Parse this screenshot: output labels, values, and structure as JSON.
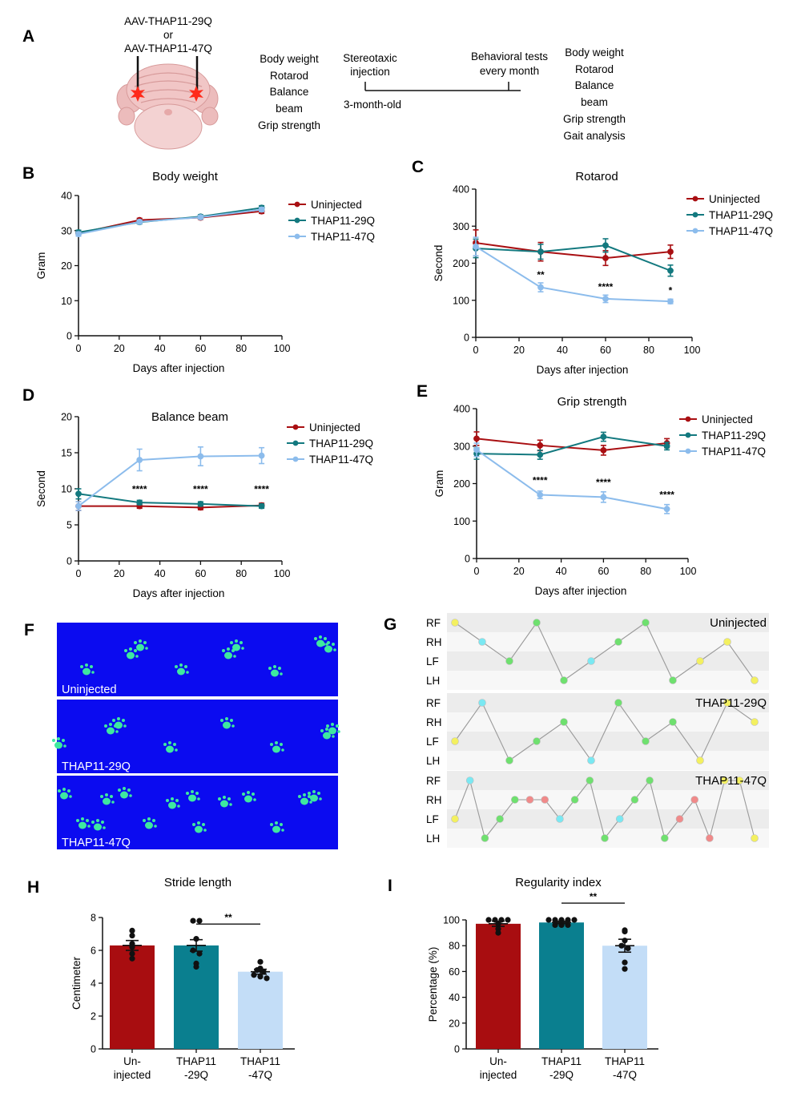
{
  "colors": {
    "uninjected": "#a90f12",
    "thap29": "#13797f",
    "thap47": "#8cbcec",
    "bar_uninjected": "#a80d10",
    "bar_thap29": "#0a7f8f",
    "bar_thap47": "#c3ddf7",
    "gait_bg": "#0b0bf0",
    "paw": "#3ee8a0",
    "dot_yellow": "#f3f060",
    "dot_green": "#6fe06f",
    "dot_cyan": "#7ae8f2",
    "dot_pink": "#f08a8a"
  },
  "panel_letters": {
    "A": "A",
    "B": "B",
    "C": "C",
    "D": "D",
    "E": "E",
    "F": "F",
    "G": "G",
    "H": "H",
    "I": "I"
  },
  "panelA": {
    "virus_line1": "AAV-THAP11-29Q",
    "virus_or": "or",
    "virus_line2": "AAV-THAP11-47Q",
    "baseline_tests": [
      "Body weight",
      "Rotarod",
      "Balance",
      "beam",
      "Grip strength"
    ],
    "injection_label": [
      "Stereotaxic",
      "injection"
    ],
    "age_label": "3-month-old",
    "behavior_label": [
      "Behavioral tests",
      "every month"
    ],
    "monthly_tests": [
      "Body weight",
      "Rotarod",
      "Balance",
      "beam",
      "Grip strength",
      "Gait analysis"
    ]
  },
  "chart_data": [
    {
      "id": "B",
      "type": "line",
      "title": "Body weight",
      "xlabel": "Days after injection",
      "ylabel": "Gram",
      "xlim": [
        0,
        100
      ],
      "ylim": [
        0,
        40
      ],
      "xticks": [
        0,
        20,
        40,
        60,
        80,
        100
      ],
      "yticks": [
        0,
        10,
        20,
        30,
        40
      ],
      "x": [
        0,
        30,
        60,
        90
      ],
      "series": [
        {
          "name": "Uninjected",
          "values": [
            29.2,
            33.0,
            33.7,
            35.5
          ],
          "err": [
            0.6,
            0.5,
            0.5,
            0.6
          ]
        },
        {
          "name": "THAP11-29Q",
          "values": [
            29.5,
            32.4,
            34.0,
            36.5
          ],
          "err": [
            0.6,
            0.5,
            0.5,
            0.6
          ]
        },
        {
          "name": "THAP11-47Q",
          "values": [
            29.0,
            32.5,
            33.8,
            36.0
          ],
          "err": [
            0.6,
            0.5,
            0.5,
            0.6
          ]
        }
      ],
      "annotations": []
    },
    {
      "id": "C",
      "type": "line",
      "title": "Rotarod",
      "xlabel": "Days after injection",
      "ylabel": "Second",
      "xlim": [
        0,
        100
      ],
      "ylim": [
        0,
        400
      ],
      "xticks": [
        0,
        20,
        40,
        60,
        80,
        100
      ],
      "yticks": [
        0,
        100,
        200,
        300,
        400
      ],
      "x": [
        0,
        30,
        60,
        90
      ],
      "series": [
        {
          "name": "Uninjected",
          "values": [
            255,
            231,
            214,
            231
          ],
          "err": [
            35,
            25,
            20,
            18
          ]
        },
        {
          "name": "THAP11-29Q",
          "values": [
            240,
            231,
            248,
            180
          ],
          "err": [
            25,
            20,
            18,
            15
          ]
        },
        {
          "name": "THAP11-47Q",
          "values": [
            245,
            135,
            104,
            97
          ],
          "err": [
            25,
            12,
            10,
            6
          ]
        }
      ],
      "annotations": [
        {
          "x": 30,
          "y": 160,
          "text": "**"
        },
        {
          "x": 60,
          "y": 128,
          "text": "****"
        },
        {
          "x": 90,
          "y": 118,
          "text": "*"
        }
      ]
    },
    {
      "id": "D",
      "type": "line",
      "title": "Balance beam",
      "xlabel": "Days after injection",
      "ylabel": "Second",
      "xlim": [
        0,
        100
      ],
      "ylim": [
        0,
        20
      ],
      "xticks": [
        0,
        20,
        40,
        60,
        80,
        100
      ],
      "yticks": [
        0,
        5,
        10,
        15,
        20
      ],
      "x": [
        0,
        30,
        60,
        90
      ],
      "series": [
        {
          "name": "Uninjected",
          "values": [
            7.6,
            7.6,
            7.4,
            7.7
          ],
          "err": [
            0.6,
            0.3,
            0.3,
            0.3
          ]
        },
        {
          "name": "THAP11-29Q",
          "values": [
            9.3,
            8.1,
            7.9,
            7.6
          ],
          "err": [
            0.7,
            0.3,
            0.3,
            0.3
          ]
        },
        {
          "name": "THAP11-47Q",
          "values": [
            7.6,
            14.0,
            14.5,
            14.6
          ],
          "err": [
            0.6,
            1.5,
            1.3,
            1.1
          ]
        }
      ],
      "annotations": [
        {
          "x": 30,
          "y": 9.5,
          "text": "****"
        },
        {
          "x": 60,
          "y": 9.5,
          "text": "****"
        },
        {
          "x": 90,
          "y": 9.5,
          "text": "****"
        }
      ]
    },
    {
      "id": "E",
      "type": "line",
      "title": "Grip strength",
      "xlabel": "Days after injection",
      "ylabel": "Gram",
      "xlim": [
        0,
        100
      ],
      "ylim": [
        0,
        400
      ],
      "xticks": [
        0,
        20,
        40,
        60,
        80,
        100
      ],
      "yticks": [
        0,
        100,
        200,
        300,
        400
      ],
      "x": [
        0,
        30,
        60,
        90
      ],
      "series": [
        {
          "name": "Uninjected",
          "values": [
            320,
            302,
            289,
            308
          ],
          "err": [
            18,
            14,
            13,
            12
          ]
        },
        {
          "name": "THAP11-29Q",
          "values": [
            280,
            277,
            325,
            300
          ],
          "err": [
            15,
            12,
            12,
            10
          ]
        },
        {
          "name": "THAP11-47Q",
          "values": [
            290,
            170,
            164,
            132
          ],
          "err": [
            18,
            10,
            14,
            12
          ]
        }
      ],
      "annotations": [
        {
          "x": 30,
          "y": 200,
          "text": "****"
        },
        {
          "x": 60,
          "y": 195,
          "text": "****"
        },
        {
          "x": 90,
          "y": 162,
          "text": "****"
        }
      ]
    },
    {
      "id": "H",
      "type": "bar",
      "title": "Stride length",
      "ylabel": "Centimeter",
      "ylim": [
        0,
        8
      ],
      "yticks": [
        0,
        2,
        4,
        6,
        8
      ],
      "categories": [
        [
          "Un-",
          "injected"
        ],
        [
          "THAP11",
          "-29Q"
        ],
        [
          "THAP11",
          "-47Q"
        ]
      ],
      "values": [
        6.3,
        6.3,
        4.7
      ],
      "err": [
        0.3,
        0.35,
        0.15
      ],
      "points": [
        [
          7.2,
          6.9,
          6.4,
          6.2,
          5.8,
          5.5
        ],
        [
          7.8,
          7.8,
          6.7,
          6.0,
          5.8,
          5.2,
          5.0
        ],
        [
          5.3,
          4.9,
          4.8,
          4.7,
          4.5,
          4.4,
          4.3
        ]
      ],
      "sig": {
        "from": 1,
        "to": 2,
        "y": 7.6,
        "text": "**"
      }
    },
    {
      "id": "I",
      "type": "bar",
      "title": "Regularity index",
      "ylabel": "Percentage (%)",
      "ylim": [
        0,
        100
      ],
      "yticks": [
        0,
        20,
        40,
        60,
        80,
        100
      ],
      "categories": [
        [
          "Un-",
          "injected"
        ],
        [
          "THAP11",
          "-29Q"
        ],
        [
          "THAP11",
          "-47Q"
        ]
      ],
      "values": [
        97,
        98,
        80
      ],
      "err": [
        2,
        1,
        5
      ],
      "points": [
        [
          100,
          100,
          100,
          100,
          97,
          93,
          90
        ],
        [
          100,
          100,
          100,
          100,
          100,
          96,
          96,
          96
        ],
        [
          92,
          91,
          84,
          80,
          78,
          67,
          62
        ]
      ],
      "sig": {
        "from": 1,
        "to": 2,
        "y": 113,
        "text": "**"
      }
    }
  ],
  "gait_video": {
    "panels": [
      {
        "label": "Uninjected"
      },
      {
        "label": "THAP11-29Q"
      },
      {
        "label": "THAP11-47Q"
      }
    ]
  },
  "gait_pattern": {
    "rows": [
      "RF",
      "RH",
      "LF",
      "LH"
    ],
    "groups": [
      {
        "label": "Uninjected",
        "points": [
          [
            0,
            0,
            "y"
          ],
          [
            1,
            1,
            "c"
          ],
          [
            2,
            2,
            "g"
          ],
          [
            3,
            0,
            "g"
          ],
          [
            4,
            3,
            "g"
          ],
          [
            5,
            2,
            "c"
          ],
          [
            6,
            1,
            "g"
          ],
          [
            7,
            0,
            "g"
          ],
          [
            8,
            3,
            "g"
          ],
          [
            9,
            2,
            "y"
          ],
          [
            10,
            1,
            "y"
          ],
          [
            11,
            3,
            "y"
          ]
        ]
      },
      {
        "label": "THAP11-29Q",
        "points": [
          [
            0,
            2,
            "y"
          ],
          [
            1,
            0,
            "c"
          ],
          [
            2,
            3,
            "g"
          ],
          [
            3,
            2,
            "g"
          ],
          [
            4,
            1,
            "g"
          ],
          [
            5,
            3,
            "c"
          ],
          [
            6,
            0,
            "g"
          ],
          [
            7,
            2,
            "g"
          ],
          [
            8,
            1,
            "g"
          ],
          [
            9,
            3,
            "y"
          ],
          [
            10,
            0,
            "y"
          ],
          [
            11,
            1,
            "y"
          ]
        ]
      },
      {
        "label": "THAP11-47Q",
        "points": [
          [
            0,
            2,
            "y"
          ],
          [
            1,
            0,
            "c"
          ],
          [
            2,
            3,
            "g"
          ],
          [
            3,
            2,
            "g"
          ],
          [
            4,
            1,
            "g"
          ],
          [
            5,
            1,
            "p"
          ],
          [
            6,
            1,
            "p"
          ],
          [
            7,
            2,
            "c"
          ],
          [
            8,
            1,
            "g"
          ],
          [
            9,
            0,
            "g"
          ],
          [
            10,
            3,
            "g"
          ],
          [
            11,
            2,
            "c"
          ],
          [
            12,
            1,
            "g"
          ],
          [
            13,
            0,
            "g"
          ],
          [
            14,
            3,
            "g"
          ],
          [
            15,
            2,
            "p"
          ],
          [
            16,
            1,
            "p"
          ],
          [
            17,
            3,
            "p"
          ],
          [
            18,
            0,
            "y"
          ],
          [
            19,
            0,
            "y"
          ],
          [
            20,
            3,
            "y"
          ]
        ]
      }
    ]
  }
}
